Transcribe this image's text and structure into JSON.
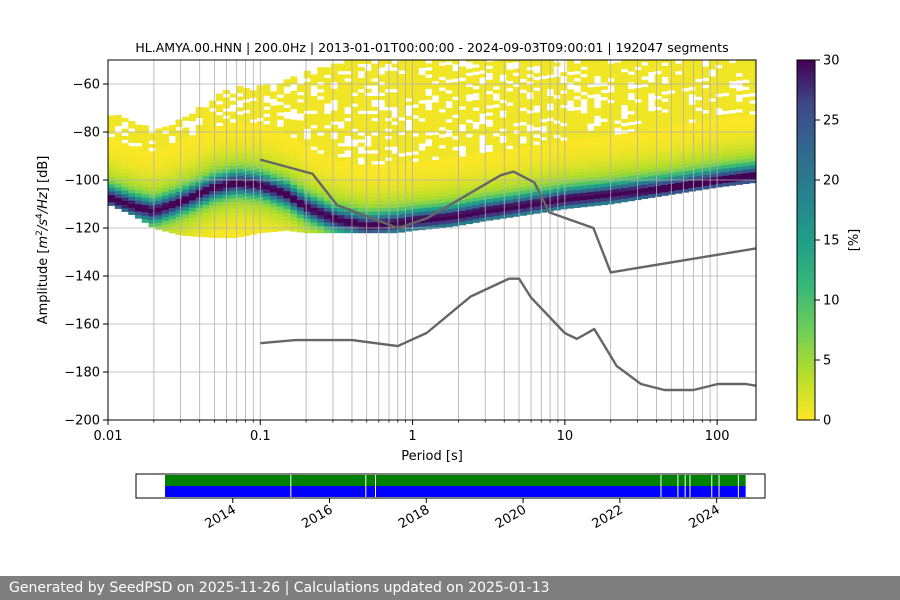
{
  "chart_data": [
    {
      "type": "heatmap",
      "title": "HL.AMYA.00.HNN | 200.0Hz | 2013-01-01T00:00:00 - 2024-09-03T09:00:01 | 192047 segments",
      "xlabel": "Period [s]",
      "ylabel_parts": [
        "Amplitude [",
        "m",
        "2",
        "/",
        "s",
        "4",
        "/",
        "Hz",
        "] [dB]"
      ],
      "x_scale": "log",
      "xlim": [
        0.01,
        180
      ],
      "ylim": [
        -200,
        -50
      ],
      "x_ticks": [
        {
          "value": 0.01,
          "label": "0.01"
        },
        {
          "value": 0.1,
          "label": "0.1"
        },
        {
          "value": 1,
          "label": "1"
        },
        {
          "value": 10,
          "label": "10"
        },
        {
          "value": 100,
          "label": "100"
        }
      ],
      "y_ticks": [
        {
          "value": -60,
          "label": "−60"
        },
        {
          "value": -80,
          "label": "−80"
        },
        {
          "value": -100,
          "label": "−100"
        },
        {
          "value": -120,
          "label": "−120"
        },
        {
          "value": -140,
          "label": "−140"
        },
        {
          "value": -160,
          "label": "−160"
        },
        {
          "value": -180,
          "label": "−180"
        },
        {
          "value": -200,
          "label": "−200"
        }
      ],
      "grid": true,
      "colormap": "viridis_r",
      "colorbar": {
        "label": "[%]",
        "range": [
          0,
          30
        ],
        "ticks": [
          {
            "value": 0,
            "label": "0"
          },
          {
            "value": 5,
            "label": "5"
          },
          {
            "value": 10,
            "label": "10"
          },
          {
            "value": 15,
            "label": "15"
          },
          {
            "value": 20,
            "label": "20"
          },
          {
            "value": 25,
            "label": "25"
          },
          {
            "value": 30,
            "label": "30"
          }
        ]
      },
      "mode_curve": {
        "period": [
          0.01,
          0.015,
          0.02,
          0.03,
          0.05,
          0.07,
          0.1,
          0.15,
          0.2,
          0.3,
          0.5,
          0.8,
          1,
          1.5,
          2,
          3,
          5,
          8,
          10,
          20,
          50,
          100,
          180
        ],
        "db": [
          -107,
          -111,
          -113,
          -109,
          -103,
          -101,
          -102,
          -106,
          -111,
          -116,
          -119,
          -118,
          -117,
          -116,
          -115,
          -113,
          -111,
          -109,
          -108,
          -106,
          -103,
          -100,
          -98
        ]
      },
      "coverage_bounds": {
        "period": [
          0.01,
          0.015,
          0.02,
          0.03,
          0.05,
          0.07,
          0.1,
          0.15,
          0.2,
          0.3,
          0.5,
          0.8,
          1,
          1.5,
          2,
          3,
          5,
          8,
          10,
          20,
          50,
          100,
          180
        ],
        "upper_db": [
          -73,
          -76,
          -80,
          -76,
          -66,
          -62,
          -61,
          -59,
          -56,
          -52,
          -50,
          -50,
          -50,
          -50,
          -50,
          -50,
          -50,
          -50,
          -50,
          -50,
          -50,
          -50,
          -50
        ],
        "lower_db": [
          -110,
          -115,
          -120,
          -123,
          -124,
          -124,
          -122,
          -121,
          -122,
          -122,
          -122,
          -122,
          -121,
          -120,
          -119,
          -117,
          -115,
          -113,
          -112,
          -110,
          -106,
          -103,
          -101
        ]
      },
      "nhnm": {
        "period": [
          0.1,
          0.22,
          0.32,
          0.8,
          1.24,
          3.8,
          4.6,
          6.3,
          7.9,
          15.4,
          20,
          180
        ],
        "db": [
          -91.5,
          -97.4,
          -110.5,
          -120,
          -116,
          -98,
          -96.5,
          -101,
          -113.5,
          -120,
          -138.5,
          -128.5
        ]
      },
      "nlnm": {
        "period": [
          0.1,
          0.17,
          0.4,
          0.8,
          1.24,
          2.4,
          4.3,
          5,
          6,
          10,
          12,
          15.6,
          21.9,
          31.6,
          45,
          70,
          101,
          154,
          180
        ],
        "db": [
          -168,
          -166.7,
          -166.7,
          -169.2,
          -163.7,
          -148.6,
          -141.1,
          -141.1,
          -149,
          -163.8,
          -166.2,
          -162.1,
          -177.5,
          -185,
          -187.5,
          -187.5,
          -185,
          -185,
          -185.7
        ]
      }
    },
    {
      "type": "timeline",
      "x_ticks": [
        "2014",
        "2016",
        "2018",
        "2020",
        "2022",
        "2024"
      ],
      "xlim_years": [
        2012.0,
        2025.0
      ],
      "bars": [
        {
          "name": "upper",
          "color": "#008000",
          "start": 2012.6,
          "end": 2024.6
        },
        {
          "name": "lower",
          "color": "#0000ff",
          "start": 2012.6,
          "end": 2024.6
        }
      ],
      "gaps": [
        2015.2,
        2016.75,
        2016.95,
        2022.85,
        2023.2,
        2023.35,
        2023.45,
        2023.9,
        2024.05,
        2024.45
      ]
    }
  ],
  "footer": {
    "text": "Generated by SeedPSD on 2025-11-26 | Calculations updated on 2025-01-13"
  }
}
